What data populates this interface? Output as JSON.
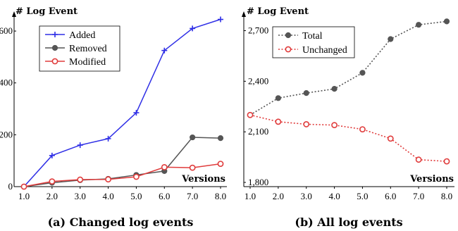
{
  "chart_data": [
    {
      "type": "line",
      "caption": "(a) Changed log events",
      "ylabel": "# Log Event",
      "xlabel": "Versions",
      "categories": [
        "1.0",
        "2.0",
        "3.0",
        "4.0",
        "5.0",
        "6.0",
        "7.0",
        "8.0"
      ],
      "yticks": [
        "0",
        "200",
        "400",
        "600"
      ],
      "ylim": [
        0,
        660
      ],
      "grid": false,
      "legend_position": "top-left",
      "series": [
        {
          "name": "Added",
          "color": "#2f2fe6",
          "marker": "plus",
          "dash": "solid",
          "values": [
            0,
            120,
            160,
            185,
            285,
            525,
            610,
            645
          ]
        },
        {
          "name": "Removed",
          "color": "#555555",
          "marker": "filled-circle",
          "dash": "solid",
          "values": [
            0,
            15,
            25,
            30,
            45,
            60,
            190,
            187
          ]
        },
        {
          "name": "Modified",
          "color": "#e03c3c",
          "marker": "open-circle",
          "dash": "solid",
          "values": [
            0,
            20,
            27,
            28,
            38,
            75,
            73,
            88
          ]
        }
      ]
    },
    {
      "type": "line",
      "caption": "(b) All log events",
      "ylabel": "# Log Event",
      "xlabel": "Versions",
      "categories": [
        "1.0",
        "2.0",
        "3.0",
        "4.0",
        "5.0",
        "6.0",
        "7.0",
        "8.0"
      ],
      "yticks": [
        "1,800",
        "2,100",
        "2,400",
        "2,700"
      ],
      "ytick_values": [
        1800,
        2100,
        2400,
        2700
      ],
      "ylim": [
        1775,
        2790
      ],
      "grid": false,
      "legend_position": "top-left",
      "series": [
        {
          "name": "Total",
          "color": "#555555",
          "marker": "filled-circle",
          "dash": "dotted",
          "values": [
            2200,
            2300,
            2330,
            2355,
            2450,
            2650,
            2735,
            2755
          ]
        },
        {
          "name": "Unchanged",
          "color": "#e03c3c",
          "marker": "open-circle",
          "dash": "dotted",
          "values": [
            2200,
            2160,
            2145,
            2140,
            2115,
            2060,
            1935,
            1925
          ]
        }
      ]
    }
  ]
}
